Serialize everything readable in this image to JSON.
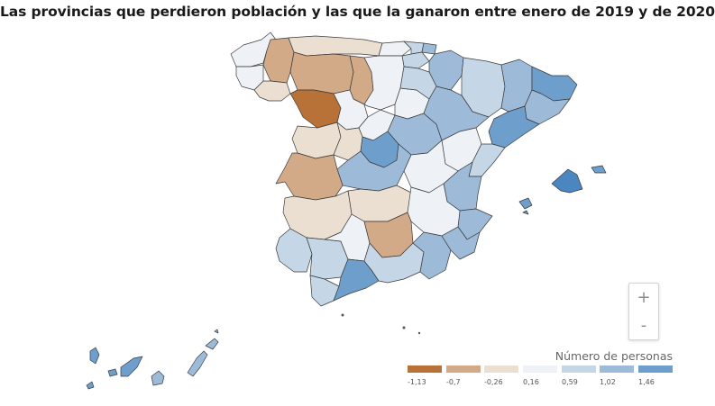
{
  "title": "Las provincias que perdieron población y las que la ganaron entre enero de 2019 y de 2020",
  "legend": {
    "title": "Número de personas",
    "items": [
      {
        "label": "-1,13",
        "color": "#b87137"
      },
      {
        "label": "-0,7",
        "color": "#d3aa87"
      },
      {
        "label": "-0,26",
        "color": "#eadfd1"
      },
      {
        "label": "0,16",
        "color": "#eef2f6"
      },
      {
        "label": "0,59",
        "color": "#c5d7e6"
      },
      {
        "label": "1,02",
        "color": "#9dbbd8"
      },
      {
        "label": "1,46",
        "color": "#6e9fcc"
      }
    ]
  },
  "zoom": {
    "in_label": "+",
    "out_label": "-"
  },
  "colors": {
    "strong_loss": "#b87137",
    "loss": "#d3aa87",
    "slight_loss": "#eadfd1",
    "neutral": "#f4f7fa",
    "slight_gain": "#c5d7e6",
    "gain": "#9dbbd8",
    "strong_gain": "#6e9fcc",
    "max_gain": "#4a86c0"
  }
}
